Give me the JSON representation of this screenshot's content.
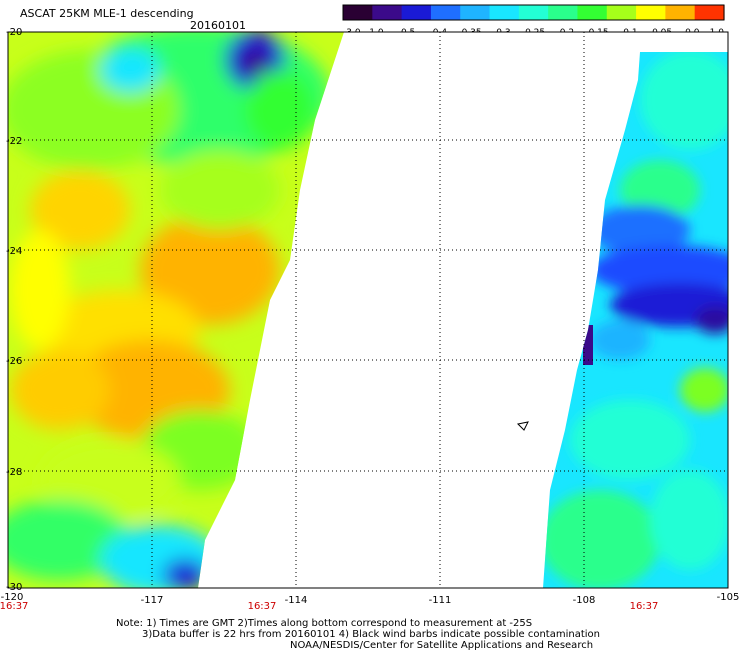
{
  "header": {
    "title": "ASCAT 25KM MLE-1 descending",
    "date": "20160101"
  },
  "colorbar": {
    "tick_labels": [
      "-3.0",
      "-1.0",
      "-0.5",
      "-0.4",
      "-0.35",
      "-0.3",
      "-0.25",
      "-0.2",
      "-0.15",
      "-0.1",
      "-0.05",
      "0.0",
      "1.0"
    ],
    "colors": [
      "#2a0033",
      "#3b0a8a",
      "#1a1ad6",
      "#1f6fff",
      "#1fb4ff",
      "#19e6ff",
      "#23ffd5",
      "#2aff8c",
      "#33ff33",
      "#a6ff1a",
      "#ffff00",
      "#ffb300",
      "#ff3300"
    ]
  },
  "map": {
    "lat_labels": [
      "-20",
      "-22",
      "-24",
      "-26",
      "-28",
      "-30"
    ],
    "lon_labels": [
      "-120",
      "-117",
      "-114",
      "-111",
      "-108",
      "-105"
    ],
    "time_labels": [
      "16:37",
      "16:37",
      "16:37"
    ],
    "time_label_color": "#cc0000",
    "grid_style": "dotted"
  },
  "footer": {
    "line1": "Note: 1) Times are GMT 2)Times along bottom correspond to measurement at -25S",
    "line2": "3)Data buffer is 22 hrs from 20160101 4) Black wind barbs indicate possible contamination",
    "line3": "NOAA/NESDIS/Center for Satellite Applications and Research"
  }
}
